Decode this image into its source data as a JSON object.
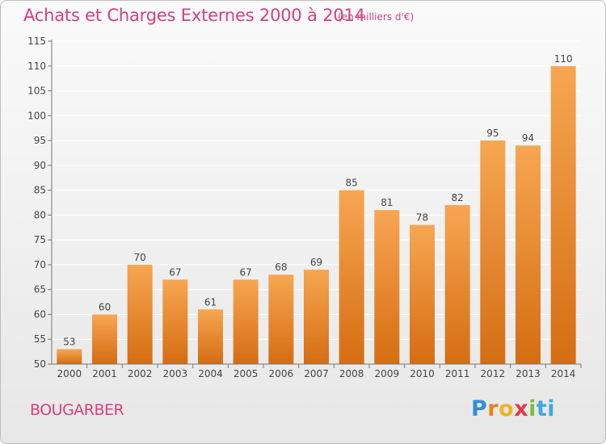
{
  "header": {
    "title": "Achats et Charges Externes 2000 à 2014",
    "subtitle": "(en milliers d'€)"
  },
  "footer": {
    "commune": "BOUGARBER",
    "brand_letters": [
      "P",
      "r",
      "o",
      "x",
      "i",
      "ti"
    ]
  },
  "colors": {
    "bar_top": "#f7a652",
    "bar_bottom": "#d56d12",
    "title": "#d4407f",
    "grid": "#ffffff"
  },
  "chart_data": {
    "type": "bar",
    "categories": [
      "2000",
      "2001",
      "2002",
      "2003",
      "2004",
      "2005",
      "2006",
      "2007",
      "2008",
      "2009",
      "2010",
      "2011",
      "2012",
      "2013",
      "2014"
    ],
    "values": [
      53,
      60,
      70,
      67,
      61,
      67,
      68,
      69,
      85,
      81,
      78,
      82,
      95,
      94,
      110
    ],
    "ylim": [
      50,
      115
    ],
    "yticks": [
      50,
      55,
      60,
      65,
      70,
      75,
      80,
      85,
      90,
      95,
      100,
      105,
      110,
      115
    ],
    "grid": true,
    "title": "Achats et Charges Externes 2000 à 2014"
  }
}
